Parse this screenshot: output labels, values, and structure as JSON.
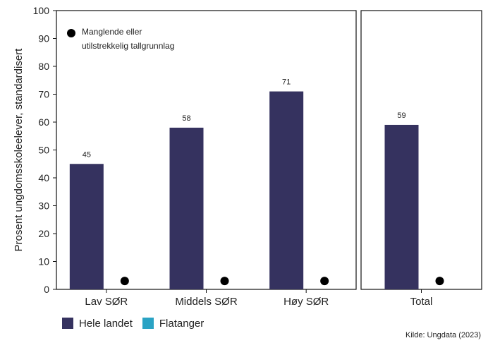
{
  "chart_data": {
    "type": "bar",
    "ylabel": "Prosent ungdomsskoleelever, standardisert",
    "ylim": [
      0,
      100
    ],
    "yticks": [
      "0",
      "10",
      "20",
      "30",
      "40",
      "50",
      "60",
      "70",
      "80",
      "90",
      "100"
    ],
    "panels": [
      {
        "categories": [
          "Lav SØR",
          "Middels SØR",
          "Høy SØR"
        ],
        "series": [
          {
            "name": "Hele landet",
            "values": [
              45,
              58,
              71
            ],
            "labels": [
              "45",
              "58",
              "71"
            ]
          },
          {
            "name": "Flatanger",
            "values": [
              null,
              null,
              null
            ]
          }
        ]
      },
      {
        "categories": [
          "Total"
        ],
        "series": [
          {
            "name": "Hele landet",
            "values": [
              59
            ],
            "labels": [
              "59"
            ]
          },
          {
            "name": "Flatanger",
            "values": [
              null
            ]
          }
        ]
      }
    ],
    "missing_note_line1": "Manglende eller",
    "missing_note_line2": "utilstrekkelig tallgrunnlag",
    "legend": [
      {
        "name": "Hele landet",
        "color": "#35325f"
      },
      {
        "name": "Flatanger",
        "color": "#2aa3c4"
      }
    ],
    "legend_position": "bottom-left",
    "grid": false,
    "source": "Kilde: Ungdata (2023)"
  }
}
